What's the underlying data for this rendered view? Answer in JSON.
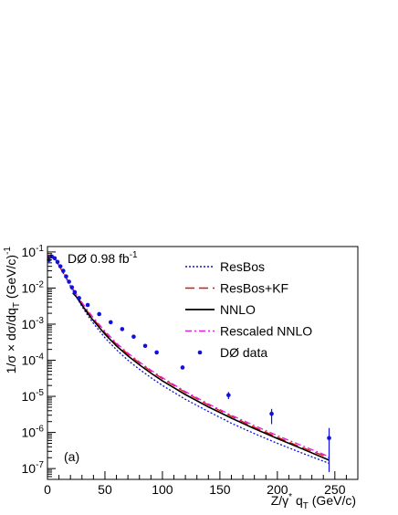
{
  "chart_data": {
    "type": "line",
    "panel_label": "(a)",
    "annotation": {
      "text": "DØ 0.98 fb",
      "sup": "-1"
    },
    "xlabel": {
      "main": "Z/γ",
      "sup": "*",
      "mid": " q",
      "sub": "T",
      "tail": " (GeV/c)"
    },
    "ylabel": {
      "a": "1/σ × dσ/dq",
      "sub": "T",
      "b": " (GeV/c)",
      "sup": "-1"
    },
    "xlim": [
      0,
      270
    ],
    "ylim_log10": [
      -7.3,
      -0.85
    ],
    "log_y": true,
    "x_ticks": [
      0,
      50,
      100,
      150,
      200,
      250
    ],
    "x_tick_labels": [
      "0",
      "50",
      "100",
      "150",
      "200",
      "250"
    ],
    "y_ticks_exp": [
      -7,
      -6,
      -5,
      -4,
      -3,
      -2,
      -1
    ],
    "y_tick_base": "10",
    "legend_position": "top-right",
    "series": [
      {
        "name": "ResBos",
        "style": "dotted",
        "color": "#1010d0",
        "x": [
          0,
          2.5,
          5,
          7.5,
          10,
          15,
          20,
          25,
          30,
          35,
          40,
          50,
          60,
          70,
          80,
          90,
          100,
          120,
          140,
          160,
          180,
          200,
          220,
          240,
          245
        ],
        "y": [
          0.075,
          0.085,
          0.075,
          0.058,
          0.042,
          0.022,
          0.0112,
          0.0058,
          0.0031,
          0.00175,
          0.00105,
          0.00042,
          0.000195,
          0.0001,
          5.6e-05,
          3.3e-05,
          2e-05,
          8.3e-06,
          3.8e-06,
          1.8e-06,
          9.3e-07,
          5e-07,
          2.8e-07,
          1.6e-07,
          1.4e-07
        ]
      },
      {
        "name": "ResBos+KF",
        "style": "dashed",
        "color": "#e01010",
        "x": [
          0,
          2.5,
          5,
          7.5,
          10,
          15,
          20,
          25,
          30,
          35,
          40,
          50,
          60,
          70,
          80,
          90,
          100,
          120,
          140,
          160,
          180,
          200,
          220,
          240,
          245
        ],
        "y": [
          0.07,
          0.08,
          0.072,
          0.057,
          0.042,
          0.023,
          0.0122,
          0.0066,
          0.0037,
          0.0022,
          0.00137,
          0.00058,
          0.00028,
          0.000148,
          8.4e-05,
          5e-05,
          3.1e-05,
          1.28e-05,
          5.8e-06,
          2.8e-06,
          1.4e-06,
          7.4e-07,
          4e-07,
          2.3e-07,
          2e-07
        ]
      },
      {
        "name": "NNLO",
        "style": "solid",
        "color": "#000000",
        "x": [
          22,
          25,
          30,
          35,
          40,
          50,
          60,
          70,
          80,
          90,
          100,
          120,
          140,
          160,
          180,
          200,
          220,
          240,
          245
        ],
        "y": [
          0.0073,
          0.0058,
          0.0034,
          0.002,
          0.00125,
          0.00053,
          0.00025,
          0.000132,
          7.5e-05,
          4.4e-05,
          2.7e-05,
          1.12e-05,
          5.1e-06,
          2.5e-06,
          1.28e-06,
          6.8e-07,
          3.7e-07,
          2e-07,
          1.7e-07
        ]
      },
      {
        "name": "Rescaled NNLO",
        "style": "dashdot",
        "color": "#e020e0",
        "x": [
          22,
          25,
          30,
          35,
          40,
          50,
          60,
          70,
          80,
          90,
          100,
          120,
          140,
          160,
          180,
          200,
          220,
          240,
          245
        ],
        "y": [
          0.0085,
          0.0068,
          0.004,
          0.0024,
          0.0015,
          0.00064,
          0.0003,
          0.000158,
          9e-05,
          5.3e-05,
          3.3e-05,
          1.36e-05,
          6.2e-06,
          3e-06,
          1.55e-06,
          8.2e-07,
          4.5e-07,
          2.5e-07,
          2.1e-07
        ]
      },
      {
        "name": "DØ data",
        "style": "markers",
        "color": "#1010e0",
        "x": [
          1.25,
          3.75,
          6.25,
          8.75,
          11.25,
          13.75,
          16.25,
          18.75,
          21.25,
          23.75,
          27.5,
          35,
          45,
          55,
          65,
          75,
          85,
          95,
          117.5,
          157.5,
          195,
          245
        ],
        "y": [
          0.06,
          0.075,
          0.067,
          0.053,
          0.04,
          0.03,
          0.021,
          0.015,
          0.0105,
          0.0077,
          0.0053,
          0.0034,
          0.0019,
          0.00113,
          0.00073,
          0.00045,
          0.00025,
          0.000165,
          6.3e-05,
          1.08e-05,
          3.3e-06,
          7e-07
        ],
        "err_lo": [
          0,
          0,
          0,
          0,
          0,
          0,
          0,
          0,
          0,
          0,
          0,
          0,
          0,
          0,
          0,
          0,
          0,
          0,
          0,
          2.4e-06,
          1.6e-06,
          6.2e-07
        ],
        "err_hi": [
          0,
          0,
          0,
          0,
          0,
          0,
          0,
          0,
          0,
          0,
          0,
          0,
          0,
          0,
          0,
          0,
          0,
          0,
          0,
          2.4e-06,
          1.2e-06,
          6.3e-07
        ]
      }
    ]
  }
}
